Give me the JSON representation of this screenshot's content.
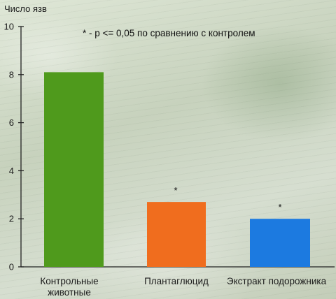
{
  "chart_data": {
    "type": "bar",
    "ylabel": "Число язв",
    "annotation": "* - p <= 0,05 по сравнению с контролем",
    "ylim": [
      0,
      10
    ],
    "yticks": [
      "0",
      "2",
      "4",
      "6",
      "8",
      "10"
    ],
    "categories": [
      [
        "Контрольные",
        "животные"
      ],
      [
        "Плантаглюцид"
      ],
      [
        "Экстракт подорожника"
      ]
    ],
    "values": [
      8.1,
      2.7,
      2.0
    ],
    "markers": [
      "",
      "*",
      "*"
    ],
    "colors": [
      "#4f9a1c",
      "#f06d1e",
      "#1c7ae0"
    ],
    "grid": false,
    "legend": "none"
  }
}
